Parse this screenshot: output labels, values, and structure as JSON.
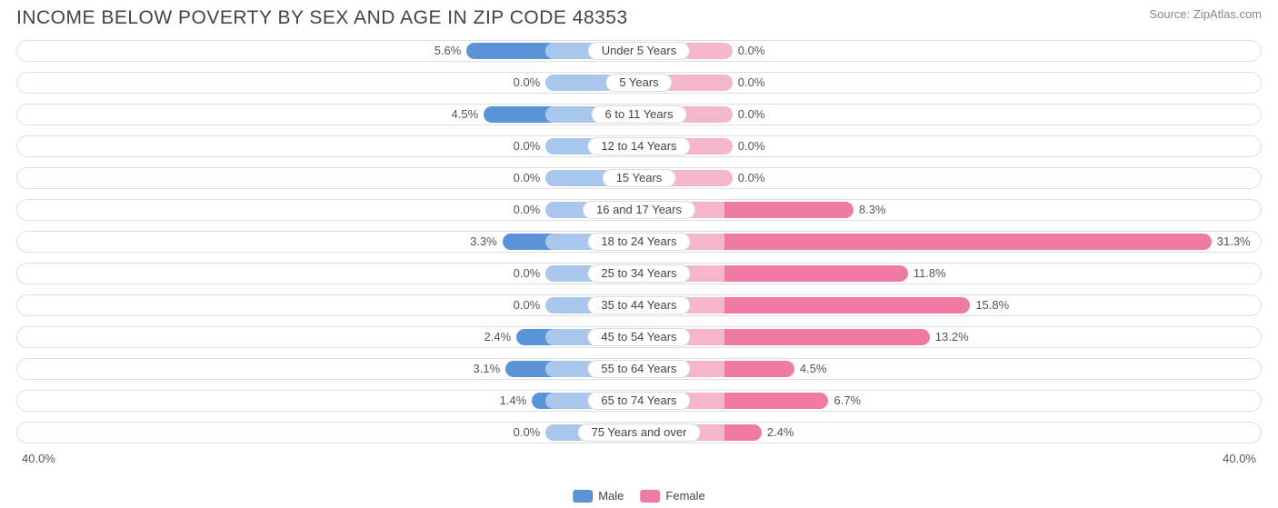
{
  "title": "INCOME BELOW POVERTY BY SEX AND AGE IN ZIP CODE 48353",
  "source": "Source: ZipAtlas.com",
  "chart": {
    "type": "diverging-bar",
    "axis_max": 40.0,
    "axis_label_left": "40.0%",
    "axis_label_right": "40.0%",
    "base_bar_pct": 6.0,
    "colors": {
      "male_base": "#a9c7ec",
      "male_value": "#5b94d6",
      "female_base": "#f5b6cb",
      "female_value": "#ef7ba5",
      "track_border": "#e0e0e0",
      "background": "#ffffff",
      "text": "#555555",
      "title": "#444444"
    },
    "legend": {
      "male_label": "Male",
      "female_label": "Female"
    },
    "rows": [
      {
        "category": "Under 5 Years",
        "male": 5.6,
        "female": 0.0,
        "male_label": "5.6%",
        "female_label": "0.0%"
      },
      {
        "category": "5 Years",
        "male": 0.0,
        "female": 0.0,
        "male_label": "0.0%",
        "female_label": "0.0%"
      },
      {
        "category": "6 to 11 Years",
        "male": 4.5,
        "female": 0.0,
        "male_label": "4.5%",
        "female_label": "0.0%"
      },
      {
        "category": "12 to 14 Years",
        "male": 0.0,
        "female": 0.0,
        "male_label": "0.0%",
        "female_label": "0.0%"
      },
      {
        "category": "15 Years",
        "male": 0.0,
        "female": 0.0,
        "male_label": "0.0%",
        "female_label": "0.0%"
      },
      {
        "category": "16 and 17 Years",
        "male": 0.0,
        "female": 8.3,
        "male_label": "0.0%",
        "female_label": "8.3%"
      },
      {
        "category": "18 to 24 Years",
        "male": 3.3,
        "female": 31.3,
        "male_label": "3.3%",
        "female_label": "31.3%"
      },
      {
        "category": "25 to 34 Years",
        "male": 0.0,
        "female": 11.8,
        "male_label": "0.0%",
        "female_label": "11.8%"
      },
      {
        "category": "35 to 44 Years",
        "male": 0.0,
        "female": 15.8,
        "male_label": "0.0%",
        "female_label": "15.8%"
      },
      {
        "category": "45 to 54 Years",
        "male": 2.4,
        "female": 13.2,
        "male_label": "2.4%",
        "female_label": "13.2%"
      },
      {
        "category": "55 to 64 Years",
        "male": 3.1,
        "female": 4.5,
        "male_label": "3.1%",
        "female_label": "4.5%"
      },
      {
        "category": "65 to 74 Years",
        "male": 1.4,
        "female": 6.7,
        "male_label": "1.4%",
        "female_label": "6.7%"
      },
      {
        "category": "75 Years and over",
        "male": 0.0,
        "female": 2.4,
        "male_label": "0.0%",
        "female_label": "2.4%"
      }
    ]
  }
}
